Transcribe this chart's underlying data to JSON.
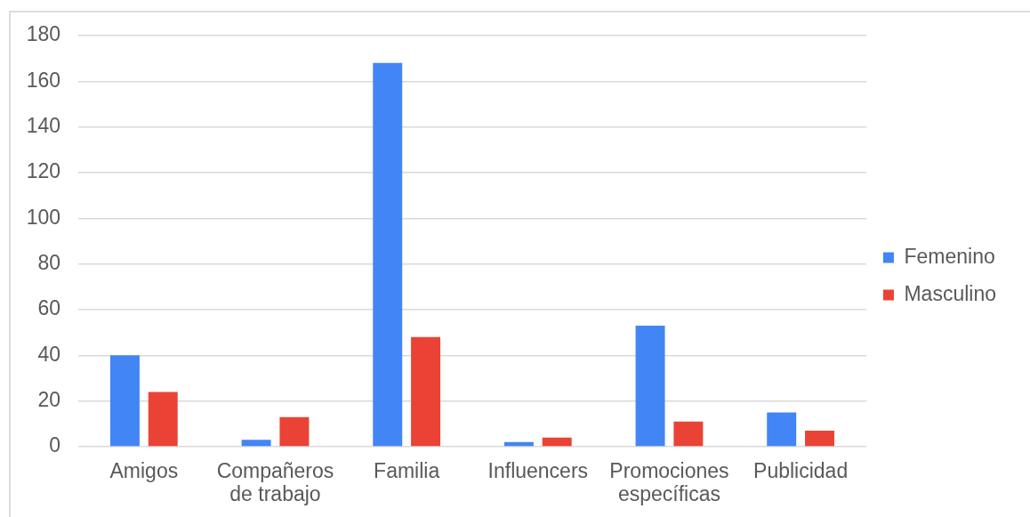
{
  "chart_data": {
    "type": "bar",
    "categories": [
      "Amigos",
      "Compañeros de trabajo",
      "Familia",
      "Influencers",
      "Promociones específicas",
      "Publicidad"
    ],
    "series": [
      {
        "name": "Femenino",
        "color": "#4285f4",
        "values": [
          40,
          3,
          168,
          2,
          53,
          15
        ]
      },
      {
        "name": "Masculino",
        "color": "#ea4335",
        "values": [
          24,
          13,
          48,
          4,
          11,
          7
        ]
      }
    ],
    "ylim": [
      0,
      180
    ],
    "yticks": [
      0,
      20,
      40,
      60,
      80,
      100,
      120,
      140,
      160,
      180
    ],
    "grid": "y",
    "legend": "right"
  }
}
